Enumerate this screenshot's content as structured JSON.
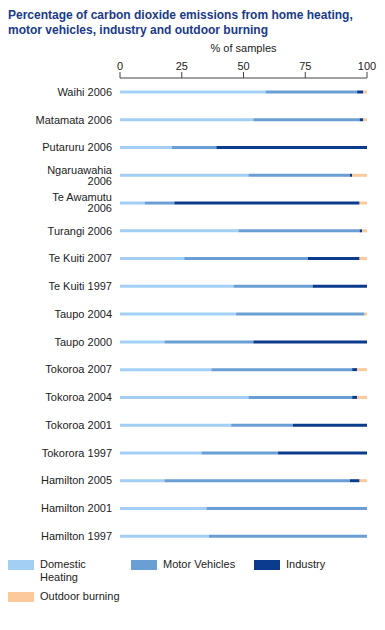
{
  "chart_data": {
    "type": "bar",
    "title": "Percentage of carbon dioxide emissions from home heating, motor vehicles, industry and outdoor burning",
    "x_label": "% of samples",
    "orientation": "horizontal",
    "stacked": true,
    "grid": false,
    "xlim": [
      0,
      100
    ],
    "xticks": [
      0,
      25,
      50,
      75,
      100
    ],
    "categories": [
      "Waihi 2006",
      "Matamata 2006",
      "Putaruru 2006",
      "Ngaruawahia 2006",
      "Te Awamutu 2006",
      "Turangi 2006",
      "Te Kuiti 2007",
      "Te Kuiti 1997",
      "Taupo 2004",
      "Taupo 2000",
      "Tokoroa 2007",
      "Tokoroa 2004",
      "Tokoroa 2001",
      "Tokorora 1997",
      "Hamilton 2005",
      "Hamilton 2001",
      "Hamilton 1997"
    ],
    "series": [
      {
        "name": "Domestic Heating",
        "color": "#a3cff5",
        "values": [
          59,
          54,
          21,
          52,
          10,
          48,
          26,
          46,
          47,
          18,
          37,
          52,
          45,
          33,
          18,
          35,
          36
        ]
      },
      {
        "name": "Motor Vehicles",
        "color": "#6a9fd6",
        "values": [
          37,
          43,
          18,
          41,
          12,
          49,
          50,
          32,
          52,
          36,
          57,
          42,
          25,
          31,
          75,
          65,
          64
        ]
      },
      {
        "name": "Industry",
        "color": "#0b3b8c",
        "values": [
          2.5,
          1.5,
          61,
          1,
          75,
          1,
          21,
          22,
          0,
          46,
          2,
          2,
          30,
          36,
          4,
          0,
          0
        ]
      },
      {
        "name": "Outdoor burning",
        "color": "#fcc99a",
        "values": [
          1.5,
          1.5,
          0,
          6,
          3,
          2,
          3,
          0,
          1,
          0,
          4,
          4,
          0,
          0,
          3,
          0,
          0
        ]
      }
    ]
  }
}
